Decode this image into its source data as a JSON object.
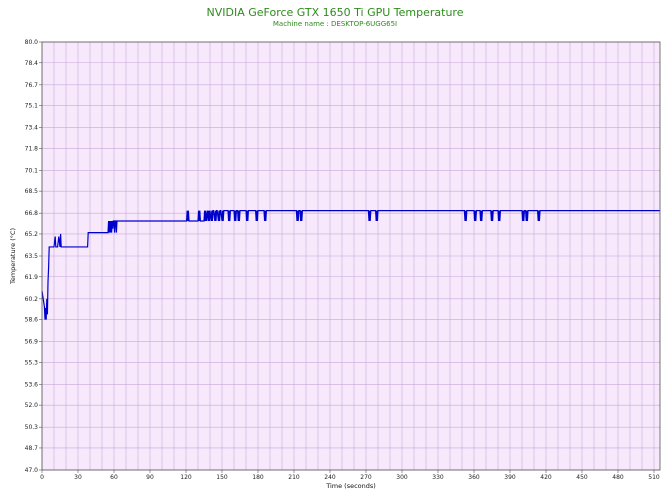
{
  "chart_data": {
    "type": "line",
    "title": "NVIDIA GeForce GTX 1650 Ti GPU Temperature",
    "subtitle": "Machine name : DESKTOP-6UGG65I",
    "xlabel": "Time (seconds)",
    "ylabel": "Temperature (°C)",
    "xlim": [
      0,
      515
    ],
    "ylim": [
      47.0,
      80.0
    ],
    "x_ticks": [
      0,
      30,
      60,
      90,
      120,
      150,
      180,
      210,
      240,
      270,
      300,
      330,
      360,
      390,
      420,
      450,
      480,
      510
    ],
    "y_ticks": [
      "47.0",
      "48.7",
      "50.3",
      "52.0",
      "53.6",
      "55.3",
      "56.9",
      "58.6",
      "60.2",
      "61.9",
      "63.5",
      "65.2",
      "66.8",
      "68.5",
      "70.1",
      "71.8",
      "73.4",
      "75.1",
      "76.7",
      "78.4",
      "80.0"
    ],
    "grid": true,
    "background_color": "#f7e9fb",
    "grid_color": "#c8a8d8",
    "series": [
      {
        "color": "#0000cc",
        "x": [
          0,
          1,
          2,
          2.5,
          3,
          3.5,
          4,
          4.5,
          5,
          5.5,
          6,
          7,
          10,
          11,
          11.5,
          12,
          13,
          14,
          15,
          15.5,
          16,
          17,
          20,
          22,
          30,
          36,
          38,
          38.5,
          45,
          50,
          55,
          55.5,
          56,
          56.5,
          57,
          57.5,
          58,
          58.5,
          59,
          59.5,
          60,
          60.5,
          61,
          61.5,
          62,
          62.5,
          63,
          70,
          90,
          110,
          120,
          120.5,
          121,
          121.5,
          122,
          122.5,
          123,
          130,
          130.5,
          131,
          131.5,
          132,
          135,
          135.5,
          136,
          136.5,
          137,
          138,
          138.5,
          139,
          139.5,
          140,
          141,
          141.5,
          142,
          142.5,
          143,
          144,
          144.5,
          145,
          145.5,
          146,
          147,
          147.5,
          148,
          148.5,
          149,
          150,
          150.5,
          151,
          151.5,
          152,
          155,
          155.5,
          156,
          156.5,
          157,
          160,
          160.5,
          161,
          161.5,
          162,
          163,
          163.5,
          164,
          164.5,
          165,
          170,
          170.5,
          171,
          171.5,
          172,
          178,
          178.5,
          179,
          179.5,
          180,
          185,
          185.5,
          186,
          186.5,
          187,
          200,
          210,
          212,
          212.5,
          213,
          213.5,
          214,
          215,
          215.5,
          216,
          216.5,
          217,
          240,
          270,
          272,
          272.5,
          273,
          273.5,
          274,
          278,
          278.5,
          279,
          279.5,
          280,
          300,
          330,
          350,
          352,
          352.5,
          353,
          353.5,
          354,
          360,
          360.5,
          361,
          361.5,
          362,
          365,
          365.5,
          366,
          366.5,
          367,
          374,
          374.5,
          375,
          375.5,
          376,
          380,
          380.5,
          381,
          381.5,
          382,
          400,
          400.5,
          401,
          401.5,
          402,
          403,
          403.5,
          404,
          404.5,
          405,
          413,
          413.5,
          414,
          414.5,
          415,
          420,
          450,
          480,
          510,
          515
        ],
        "y": [
          60.8,
          60.2,
          59.6,
          58.6,
          59.5,
          58.6,
          60.2,
          59.0,
          61.5,
          62.6,
          64.2,
          64.2,
          64.2,
          65.0,
          64.2,
          64.2,
          64.2,
          65.0,
          64.2,
          65.2,
          64.2,
          64.2,
          64.2,
          64.2,
          64.2,
          64.2,
          64.2,
          65.3,
          65.3,
          65.3,
          65.3,
          66.2,
          65.3,
          66.2,
          65.3,
          66.2,
          65.3,
          66.2,
          65.6,
          66.2,
          66.2,
          65.3,
          66.2,
          66.2,
          65.3,
          66.2,
          66.2,
          66.2,
          66.2,
          66.2,
          66.2,
          66.2,
          67.0,
          66.2,
          67.0,
          66.2,
          66.2,
          66.2,
          67.0,
          66.2,
          67.0,
          66.2,
          66.2,
          67.0,
          66.2,
          67.0,
          66.2,
          67.0,
          66.2,
          67.0,
          66.2,
          67.0,
          66.2,
          67.0,
          66.2,
          67.0,
          67.0,
          66.2,
          67.0,
          66.2,
          67.0,
          67.0,
          66.2,
          67.0,
          66.2,
          67.0,
          67.0,
          66.2,
          67.0,
          66.2,
          67.0,
          67.0,
          67.0,
          66.2,
          67.0,
          66.2,
          67.0,
          67.0,
          66.2,
          67.0,
          66.2,
          67.0,
          67.0,
          66.2,
          67.0,
          66.2,
          67.0,
          67.0,
          66.2,
          67.0,
          66.2,
          67.0,
          67.0,
          66.2,
          67.0,
          66.2,
          67.0,
          67.0,
          66.2,
          67.0,
          66.2,
          67.0,
          67.0,
          67.0,
          67.0,
          66.2,
          67.0,
          66.2,
          67.0,
          67.0,
          66.2,
          67.0,
          66.2,
          67.0,
          67.0,
          67.0,
          67.0,
          66.2,
          67.0,
          66.2,
          67.0,
          67.0,
          66.2,
          67.0,
          66.2,
          67.0,
          67.0,
          67.0,
          67.0,
          67.0,
          66.2,
          67.0,
          66.2,
          67.0,
          67.0,
          66.2,
          67.0,
          66.2,
          67.0,
          67.0,
          66.2,
          67.0,
          66.2,
          67.0,
          67.0,
          66.2,
          67.0,
          66.2,
          67.0,
          67.0,
          66.2,
          67.0,
          66.2,
          67.0,
          67.0,
          66.2,
          67.0,
          66.2,
          67.0,
          67.0,
          66.2,
          67.0,
          66.2,
          67.0,
          67.0,
          66.2,
          67.0,
          66.2,
          67.0,
          67.0,
          67.0,
          67.0,
          67.0,
          67.0
        ]
      }
    ]
  }
}
